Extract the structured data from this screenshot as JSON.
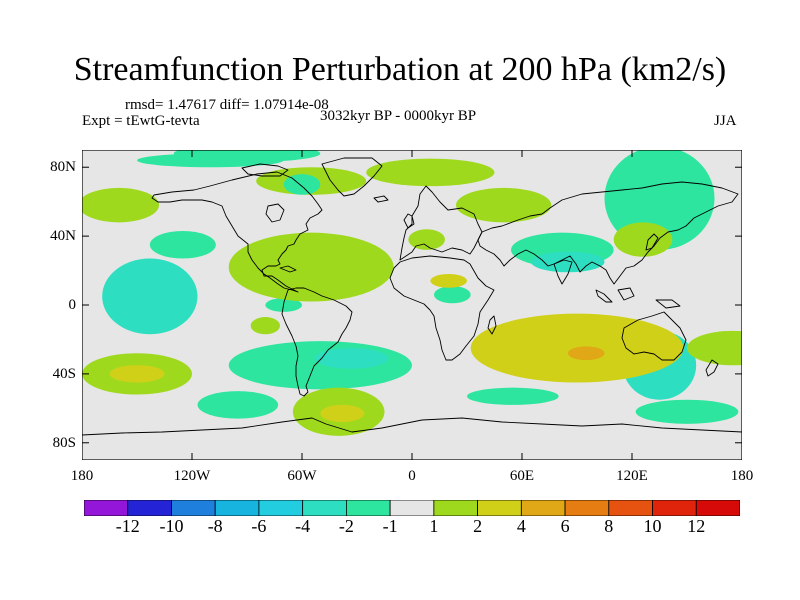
{
  "title": "Streamfunction Perturbation at 200 hPa (km2/s)",
  "stats": "rmsd= 1.47617 diff= 1.07914e-08",
  "experiment": "Expt = tEwtG-tevta",
  "period": "3032kyr BP - 0000kyr BP",
  "season": "JJA",
  "map": {
    "lon_range": [
      -180,
      180
    ],
    "lat_range": [
      -90,
      90
    ],
    "x_ticks": [
      {
        "lon": -180,
        "label": "180"
      },
      {
        "lon": -120,
        "label": "120W"
      },
      {
        "lon": -60,
        "label": "60W"
      },
      {
        "lon": 0,
        "label": "0"
      },
      {
        "lon": 60,
        "label": "60E"
      },
      {
        "lon": 120,
        "label": "120E"
      },
      {
        "lon": 180,
        "label": "180"
      }
    ],
    "y_ticks": [
      {
        "lat": 80,
        "label": "80N"
      },
      {
        "lat": 40,
        "label": "40N"
      },
      {
        "lat": 0,
        "label": "0"
      },
      {
        "lat": -40,
        "label": "40S"
      },
      {
        "lat": -80,
        "label": "80S"
      }
    ],
    "blobs": [
      {
        "lon": 135,
        "lat": 62,
        "rlon": 30,
        "rlat": 30,
        "v": -1.6
      },
      {
        "lon": 82,
        "lat": 32,
        "rlon": 28,
        "rlat": 10,
        "v": -1.6
      },
      {
        "lon": 85,
        "lat": 25,
        "rlon": 20,
        "rlat": 6,
        "v": -3.0
      },
      {
        "lon": -125,
        "lat": 35,
        "rlon": 18,
        "rlat": 8,
        "v": -1.5
      },
      {
        "lon": -90,
        "lat": 88,
        "rlon": 40,
        "rlat": 5,
        "v": -1.4
      },
      {
        "lon": -110,
        "lat": 84,
        "rlon": 40,
        "rlat": 4,
        "v": -1.4
      },
      {
        "lon": -160,
        "lat": 58,
        "rlon": 22,
        "rlat": 10,
        "v": 1.5
      },
      {
        "lon": -143,
        "lat": 5,
        "rlon": 26,
        "rlat": 22,
        "v": -2.0
      },
      {
        "lon": -145,
        "lat": 2,
        "rlon": 14,
        "rlat": 10,
        "v": -2.9
      },
      {
        "lon": -70,
        "lat": 0,
        "rlon": 10,
        "rlat": 4,
        "v": -1.6
      },
      {
        "lon": -50,
        "lat": -35,
        "rlon": 50,
        "rlat": 14,
        "v": -1.9
      },
      {
        "lon": -33,
        "lat": -31,
        "rlon": 20,
        "rlat": 6,
        "v": -3.5
      },
      {
        "lon": -95,
        "lat": -58,
        "rlon": 22,
        "rlat": 8,
        "v": -1.5
      },
      {
        "lon": 135,
        "lat": -35,
        "rlon": 20,
        "rlat": 20,
        "v": -2.0
      },
      {
        "lon": 150,
        "lat": -62,
        "rlon": 28,
        "rlat": 7,
        "v": -1.6
      },
      {
        "lon": 22,
        "lat": 6,
        "rlon": 10,
        "rlat": 5,
        "v": -1.4
      },
      {
        "lon": 55,
        "lat": -53,
        "rlon": 25,
        "rlat": 5,
        "v": -1.4
      },
      {
        "lon": -55,
        "lat": 31,
        "rlon": 32,
        "rlat": 9,
        "v": 2.9
      },
      {
        "lon": -55,
        "lat": 22,
        "rlon": 45,
        "rlat": 20,
        "v": 1.7
      },
      {
        "lon": -55,
        "lat": 72,
        "rlon": 30,
        "rlat": 8,
        "v": 1.5
      },
      {
        "lon": 10,
        "lat": 77,
        "rlon": 35,
        "rlat": 8,
        "v": 1.5
      },
      {
        "lon": 8,
        "lat": 38,
        "rlon": 10,
        "rlat": 6,
        "v": 1.6
      },
      {
        "lon": 20,
        "lat": 14,
        "rlon": 10,
        "rlat": 4,
        "v": 2.2
      },
      {
        "lon": 50,
        "lat": 58,
        "rlon": 26,
        "rlat": 10,
        "v": 1.5
      },
      {
        "lon": 126,
        "lat": 38,
        "rlon": 16,
        "rlat": 10,
        "v": 1.8
      },
      {
        "lon": 90,
        "lat": -25,
        "rlon": 58,
        "rlat": 20,
        "v": 2.1
      },
      {
        "lon": 90,
        "lat": -25,
        "rlon": 28,
        "rlat": 9,
        "v": 3.4
      },
      {
        "lon": 95,
        "lat": -28,
        "rlon": 10,
        "rlat": 4,
        "v": 5.0
      },
      {
        "lon": 175,
        "lat": -25,
        "rlon": 25,
        "rlat": 10,
        "v": 1.6
      },
      {
        "lon": -150,
        "lat": -40,
        "rlon": 30,
        "rlat": 12,
        "v": 1.6
      },
      {
        "lon": -150,
        "lat": -40,
        "rlon": 15,
        "rlat": 5,
        "v": 2.8
      },
      {
        "lon": -40,
        "lat": -62,
        "rlon": 25,
        "rlat": 14,
        "v": 1.6
      },
      {
        "lon": -38,
        "lat": -63,
        "rlon": 12,
        "rlat": 5,
        "v": 2.6
      },
      {
        "lon": -80,
        "lat": -12,
        "rlon": 8,
        "rlat": 5,
        "v": 1.4
      },
      {
        "lon": -60,
        "lat": 70,
        "rlon": 10,
        "rlat": 6,
        "v": -1.2
      }
    ]
  },
  "colorbar": {
    "levels": [
      "-12",
      "-10",
      "-8",
      "-6",
      "-4",
      "-2",
      "-1",
      "1",
      "2",
      "4",
      "6",
      "8",
      "10",
      "12"
    ],
    "colors": [
      "#9316d9",
      "#2424d6",
      "#1f7fdc",
      "#18b4e0",
      "#22cde0",
      "#2ddfc0",
      "#2ee5a0",
      "#e6e6e6",
      "#9fd91e",
      "#d1d019",
      "#e0a816",
      "#e57d13",
      "#e6520f",
      "#e0240c",
      "#d70a0a"
    ]
  }
}
